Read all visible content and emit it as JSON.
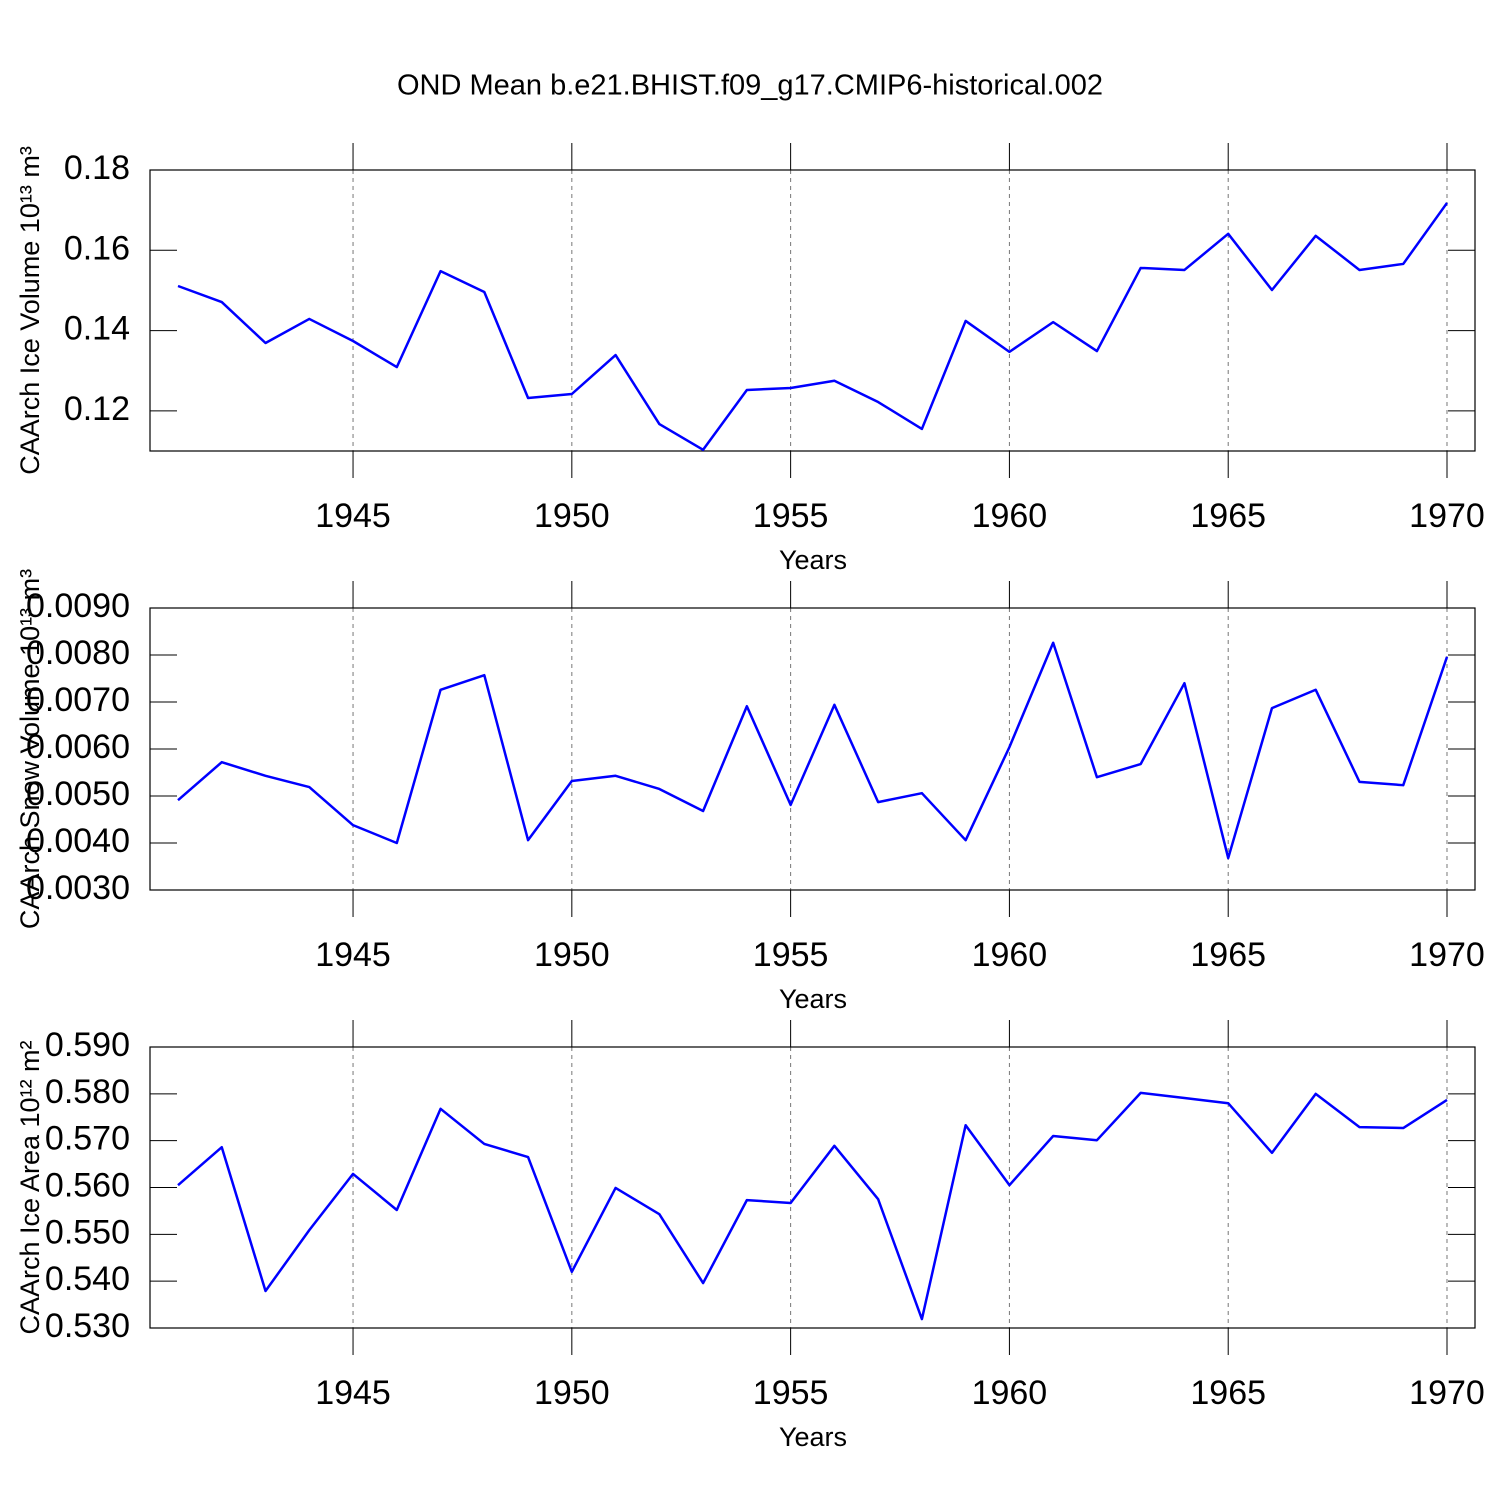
{
  "chart_data": [
    {
      "type": "line",
      "title": "OND Mean b.e21.BHIST.f09_g17.CMIP6-historical.002",
      "xlabel": "Years",
      "ylabel": "CAArch Ice Volume 10¹³ m³",
      "color": "#0000ff",
      "grid": true,
      "x": [
        1941,
        1942,
        1943,
        1944,
        1945,
        1946,
        1947,
        1948,
        1949,
        1950,
        1951,
        1952,
        1953,
        1954,
        1955,
        1956,
        1957,
        1958,
        1959,
        1960,
        1961,
        1962,
        1963,
        1964,
        1965,
        1966,
        1967,
        1968,
        1969,
        1970
      ],
      "values": [
        0.1511,
        0.1471,
        0.1369,
        0.1429,
        0.1374,
        0.1309,
        0.1548,
        0.1496,
        0.1232,
        0.1242,
        0.1339,
        0.1167,
        0.1103,
        0.1252,
        0.1257,
        0.1275,
        0.1222,
        0.1155,
        0.1424,
        0.1347,
        0.1421,
        0.1349,
        0.1556,
        0.1551,
        0.1641,
        0.1501,
        0.1636,
        0.1551,
        0.1566,
        0.1718
      ],
      "xlim": [
        1940.36,
        1970.64
      ],
      "xticks": [
        1945,
        1950,
        1955,
        1960,
        1965,
        1970
      ],
      "ylim": [
        0.11,
        0.18
      ],
      "yticks": [
        {
          "value": 0.12,
          "label": "0.12"
        },
        {
          "value": 0.14,
          "label": "0.14"
        },
        {
          "value": 0.16,
          "label": "0.16"
        },
        {
          "value": 0.18,
          "label": "0.18"
        }
      ]
    },
    {
      "type": "line",
      "xlabel": "Years",
      "ylabel": "CAArch Snow Volume 10¹³ m³",
      "color": "#0000ff",
      "grid": true,
      "x": [
        1941,
        1942,
        1943,
        1944,
        1945,
        1946,
        1947,
        1948,
        1949,
        1950,
        1951,
        1952,
        1953,
        1954,
        1955,
        1956,
        1957,
        1958,
        1959,
        1960,
        1961,
        1962,
        1963,
        1964,
        1965,
        1966,
        1967,
        1968,
        1969,
        1970
      ],
      "values": [
        0.00491,
        0.00572,
        0.00543,
        0.00519,
        0.00438,
        0.004,
        0.00726,
        0.00757,
        0.00406,
        0.00532,
        0.00543,
        0.00515,
        0.00468,
        0.00691,
        0.00481,
        0.00694,
        0.00487,
        0.00506,
        0.00406,
        0.00604,
        0.00826,
        0.0054,
        0.00568,
        0.0074,
        0.00368,
        0.00687,
        0.00726,
        0.0053,
        0.00523,
        0.00796
      ],
      "xlim": [
        1940.36,
        1970.64
      ],
      "xticks": [
        1945,
        1950,
        1955,
        1960,
        1965,
        1970
      ],
      "ylim": [
        0.003,
        0.009
      ],
      "yticks": [
        {
          "value": 0.003,
          "label": "0.0030"
        },
        {
          "value": 0.004,
          "label": "0.0040"
        },
        {
          "value": 0.005,
          "label": "0.0050"
        },
        {
          "value": 0.006,
          "label": "0.0060"
        },
        {
          "value": 0.007,
          "label": "0.0070"
        },
        {
          "value": 0.008,
          "label": "0.0080"
        },
        {
          "value": 0.009,
          "label": "0.0090"
        }
      ]
    },
    {
      "type": "line",
      "xlabel": "Years",
      "ylabel": "CAArch Ice Area 10¹² m²",
      "color": "#0000ff",
      "grid": true,
      "x": [
        1941,
        1942,
        1943,
        1944,
        1945,
        1946,
        1947,
        1948,
        1949,
        1950,
        1951,
        1952,
        1953,
        1954,
        1955,
        1956,
        1957,
        1958,
        1959,
        1960,
        1961,
        1962,
        1963,
        1964,
        1965,
        1966,
        1967,
        1968,
        1969,
        1970
      ],
      "values": [
        0.5605,
        0.5686,
        0.5379,
        0.5509,
        0.5629,
        0.5552,
        0.5768,
        0.5693,
        0.5665,
        0.542,
        0.5599,
        0.5543,
        0.5396,
        0.5573,
        0.5567,
        0.5689,
        0.5575,
        0.5319,
        0.5733,
        0.5605,
        0.571,
        0.5701,
        0.5802,
        0.5791,
        0.578,
        0.5674,
        0.58,
        0.5729,
        0.5727,
        0.5787
      ],
      "xlim": [
        1940.36,
        1970.64
      ],
      "xticks": [
        1945,
        1950,
        1955,
        1960,
        1965,
        1970
      ],
      "ylim": [
        0.53,
        0.59
      ],
      "yticks": [
        {
          "value": 0.53,
          "label": "0.530"
        },
        {
          "value": 0.54,
          "label": "0.540"
        },
        {
          "value": 0.55,
          "label": "0.550"
        },
        {
          "value": 0.56,
          "label": "0.560"
        },
        {
          "value": 0.57,
          "label": "0.570"
        },
        {
          "value": 0.58,
          "label": "0.580"
        },
        {
          "value": 0.59,
          "label": "0.590"
        }
      ]
    }
  ]
}
